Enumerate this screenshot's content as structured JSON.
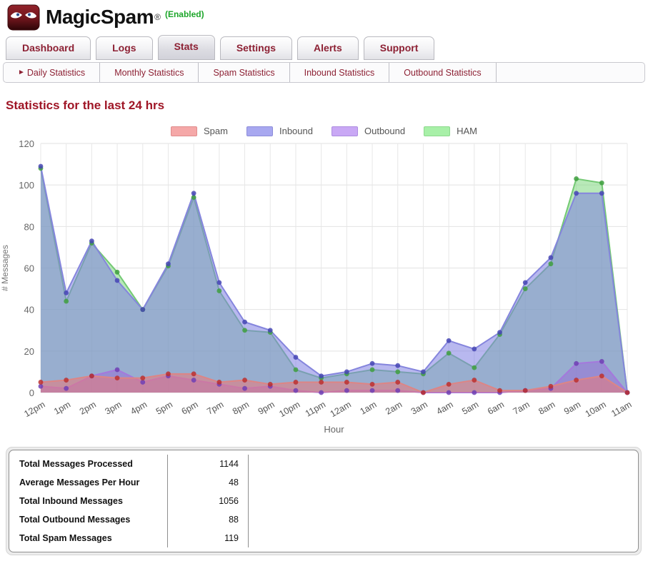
{
  "header": {
    "brand": "MagicSpam",
    "registered": "®",
    "status": "(Enabled)"
  },
  "tabs": {
    "items": [
      "Dashboard",
      "Logs",
      "Stats",
      "Settings",
      "Alerts",
      "Support"
    ],
    "active": "Stats"
  },
  "subnav": {
    "items": [
      "Daily Statistics",
      "Monthly Statistics",
      "Spam Statistics",
      "Inbound Statistics",
      "Outbound Statistics"
    ],
    "active": "Daily Statistics",
    "active_marker": "►"
  },
  "page": {
    "title": "Statistics for the last 24 hrs"
  },
  "chart_data": {
    "type": "area",
    "title": "Statistics for the last 24 hrs",
    "xlabel": "Hour",
    "ylabel": "# Messages",
    "ylim": [
      0,
      120
    ],
    "yticks": [
      0,
      20,
      40,
      60,
      80,
      100,
      120
    ],
    "grid": true,
    "legend_position": "top",
    "categories": [
      "12pm",
      "1pm",
      "2pm",
      "3pm",
      "4pm",
      "5pm",
      "6pm",
      "7pm",
      "8pm",
      "9pm",
      "10pm",
      "11pm",
      "12am",
      "1am",
      "2am",
      "3am",
      "4am",
      "5am",
      "6am",
      "7am",
      "8am",
      "9am",
      "10am",
      "11am"
    ],
    "series": [
      {
        "name": "Spam",
        "values": [
          5,
          6,
          8,
          7,
          7,
          9,
          9,
          5,
          6,
          4,
          5,
          5,
          5,
          4,
          5,
          0,
          4,
          6,
          1,
          1,
          3,
          6,
          8,
          0
        ],
        "fill": "rgba(235,120,120,0.55)",
        "stroke": "#dd8585",
        "dot": "#bb3030",
        "swatch": "#f5a8a8",
        "swatch_border": "#e08c8c"
      },
      {
        "name": "Inbound",
        "values": [
          109,
          48,
          73,
          54,
          40,
          62,
          96,
          53,
          34,
          30,
          17,
          8,
          10,
          14,
          13,
          10,
          25,
          21,
          29,
          53,
          65,
          96,
          96,
          0
        ],
        "fill": "rgba(125,125,225,0.55)",
        "stroke": "#8585dd",
        "dot": "#4646b4",
        "swatch": "#a8a8f0",
        "swatch_border": "#8c8cd9"
      },
      {
        "name": "Outbound",
        "values": [
          3,
          2,
          8,
          11,
          5,
          8,
          6,
          4,
          2,
          3,
          1,
          0,
          1,
          1,
          1,
          0,
          0,
          0,
          0,
          1,
          2,
          14,
          15,
          0
        ],
        "fill": "rgba(150,105,215,0.5)",
        "stroke": "#a578dd",
        "dot": "#6f3fb4",
        "swatch": "#c9a8f5",
        "swatch_border": "#ad8ce0"
      },
      {
        "name": "HAM",
        "values": [
          108,
          44,
          72,
          58,
          40,
          61,
          94,
          49,
          30,
          29,
          11,
          7,
          9,
          11,
          10,
          9,
          19,
          12,
          28,
          50,
          62,
          103,
          101,
          0
        ],
        "fill": "rgba(125,215,125,0.55)",
        "stroke": "#74c974",
        "dot": "#3f9f3f",
        "swatch": "#a8f0a8",
        "swatch_border": "#8cd98c"
      }
    ],
    "draw_order": [
      3,
      1,
      2,
      0
    ],
    "legend_order": [
      0,
      1,
      2,
      3
    ]
  },
  "summary_table": {
    "rows": [
      {
        "label": "Total Messages Processed",
        "value": "1144"
      },
      {
        "label": "Average Messages Per Hour",
        "value": "48"
      },
      {
        "label": "Total Inbound Messages",
        "value": "1056"
      },
      {
        "label": "Total Outbound Messages",
        "value": "88"
      },
      {
        "label": "Total Spam Messages",
        "value": "119"
      }
    ]
  },
  "colors": {
    "accent_maroon": "#8d2134",
    "title_red": "#9f1626",
    "enabled_green": "#1ea62b"
  }
}
